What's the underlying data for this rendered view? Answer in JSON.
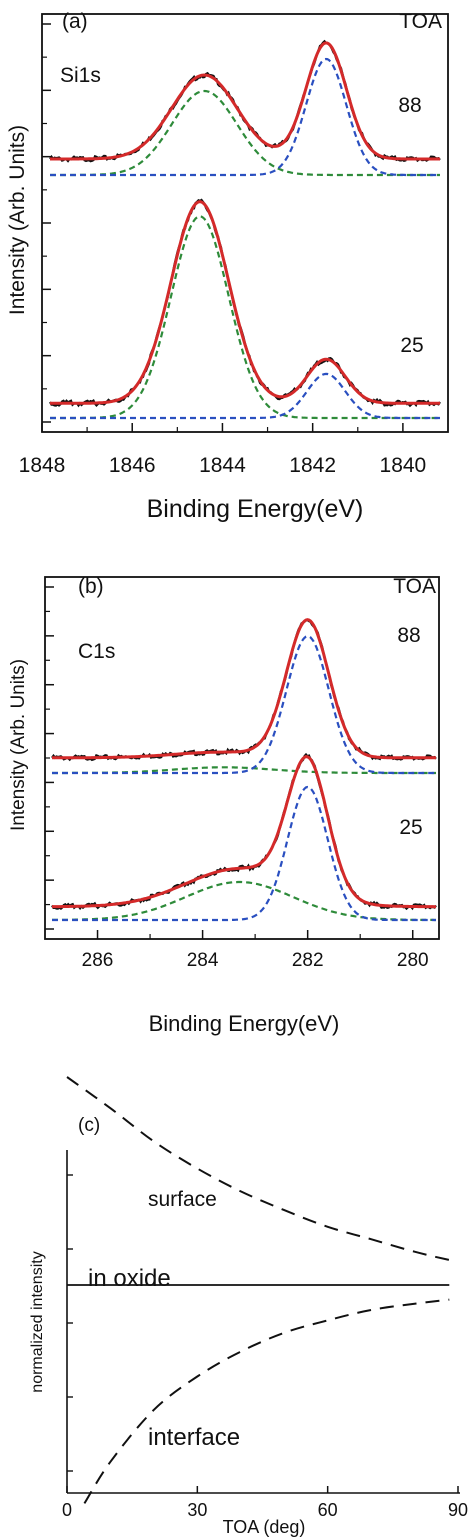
{
  "chart_data": [
    {
      "type": "line",
      "panel_label": "(a)",
      "corner_label": "TOA",
      "element_label": "Si1s",
      "xlabel": "Binding Energy(eV)",
      "ylabel": "Intensity (Arb. Units)",
      "xlim": [
        1848,
        1839
      ],
      "x_reversed": true,
      "xticks": [
        {
          "v": 1848,
          "label": "1848"
        },
        {
          "v": 1846,
          "label": "1846"
        },
        {
          "v": 1844,
          "label": "1844"
        },
        {
          "v": 1842,
          "label": "1842"
        },
        {
          "v": 1840,
          "label": "1840"
        }
      ],
      "yticks": 7,
      "colors": {
        "fit": "#d42a2a",
        "oxide": "#2e8b3a",
        "interface": "#2a4fc0",
        "data": "#111111"
      },
      "spectra": [
        {
          "label": "88",
          "oxide_peak": {
            "center": 1844.4,
            "fwhm": 1.7,
            "height": 0.42
          },
          "interface_peak": {
            "center": 1841.7,
            "fwhm": 1.05,
            "height": 0.58
          },
          "fit_baseline_offset": 0.08
        },
        {
          "label": "25",
          "oxide_peak": {
            "center": 1844.5,
            "fwhm": 1.5,
            "height": 0.96
          },
          "interface_peak": {
            "center": 1841.7,
            "fwhm": 1.0,
            "height": 0.21
          },
          "fit_baseline_offset": 0.07
        }
      ]
    },
    {
      "type": "line",
      "panel_label": "(b)",
      "corner_label": "TOA",
      "element_label": "C1s",
      "xlabel": "Binding Energy(eV)",
      "ylabel": "Intensity (Arb. Units)",
      "xlim": [
        287,
        279.5
      ],
      "x_reversed": true,
      "xticks": [
        {
          "v": 286,
          "label": "286"
        },
        {
          "v": 284,
          "label": "284"
        },
        {
          "v": 282,
          "label": "282"
        },
        {
          "v": 280,
          "label": "280"
        }
      ],
      "yticks": 8,
      "colors": {
        "fit": "#d42a2a",
        "oxide": "#2e8b3a",
        "interface": "#2a4fc0",
        "data": "#111111"
      },
      "spectra": [
        {
          "label": "88",
          "oxide_peak": {
            "center": 283.6,
            "fwhm": 2.2,
            "height": 0.03
          },
          "interface_peak": {
            "center": 282.0,
            "fwhm": 0.95,
            "height": 0.72
          },
          "fit_baseline_offset": 0.08
        },
        {
          "label": "25",
          "oxide_peak": {
            "center": 283.3,
            "fwhm": 2.4,
            "height": 0.2
          },
          "interface_peak": {
            "center": 282.0,
            "fwhm": 0.9,
            "height": 0.7
          },
          "fit_baseline_offset": 0.07
        }
      ]
    },
    {
      "type": "line",
      "panel_label": "(c)",
      "xlabel": "TOA (deg)",
      "ylabel": "normalized intensity",
      "xlim": [
        0,
        90
      ],
      "xticks": [
        {
          "v": 0,
          "label": "0"
        },
        {
          "v": 30,
          "label": "30"
        },
        {
          "v": 60,
          "label": "60"
        },
        {
          "v": 90,
          "label": "90"
        }
      ],
      "yticks": 5,
      "series": [
        {
          "name": "surface",
          "style": "dashed",
          "x": [
            0,
            10,
            20,
            30,
            40,
            50,
            60,
            70,
            80,
            88
          ],
          "y": [
            1.0,
            0.85,
            0.69,
            0.56,
            0.45,
            0.36,
            0.28,
            0.22,
            0.16,
            0.12
          ]
        },
        {
          "name": "in oxide",
          "style": "solid",
          "x": [
            0,
            88
          ],
          "y": [
            0,
            0
          ]
        },
        {
          "name": "interface",
          "style": "dashed",
          "x": [
            4,
            10,
            20,
            30,
            40,
            50,
            60,
            70,
            80,
            88
          ],
          "y": [
            -1.05,
            -0.85,
            -0.6,
            -0.44,
            -0.32,
            -0.23,
            -0.17,
            -0.12,
            -0.09,
            -0.07
          ]
        }
      ]
    }
  ]
}
